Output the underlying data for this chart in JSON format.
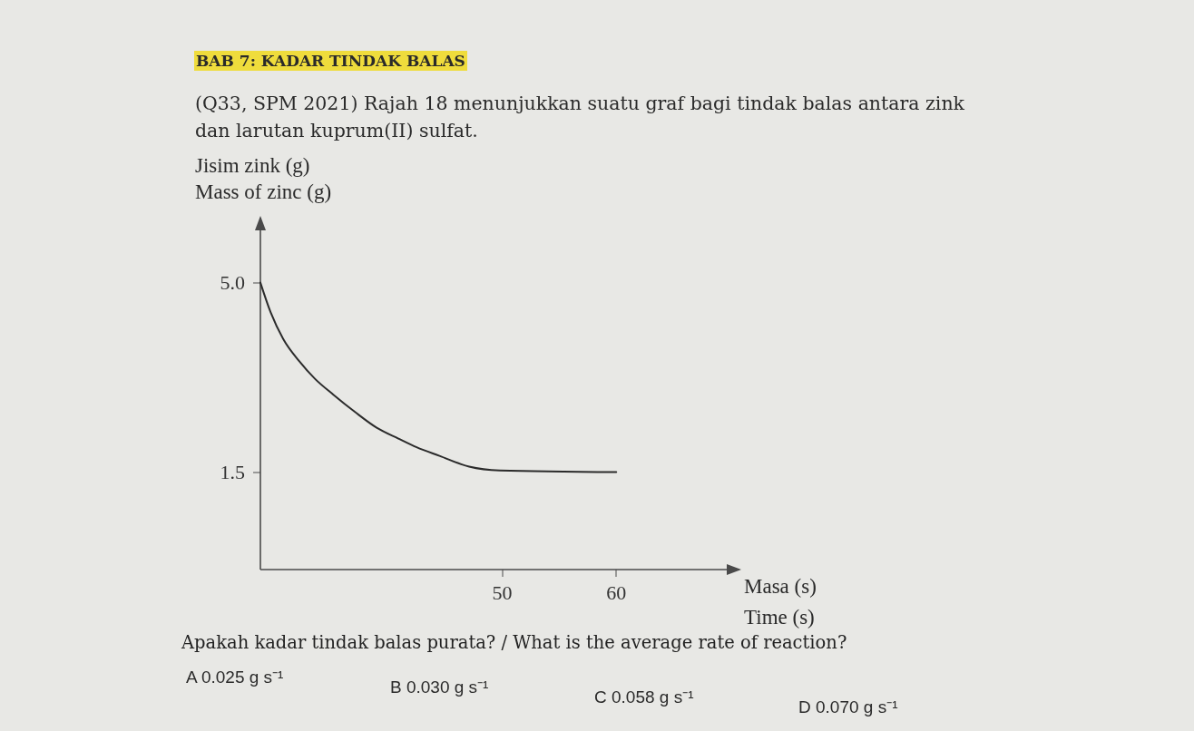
{
  "chart_data": {
    "type": "line",
    "title": "BAB 7: KADAR TINDAK BALAS",
    "subtitle": "(Q33, SPM 2021) Rajah 18 menunjukkan suatu graf bagi tindak balas antara zink dan larutan kuprum(II) sulfat.",
    "xlabel": "Masa (s)\nTime (s)",
    "ylabel": "Jisim zink (g)\nMass of zinc (g)",
    "x": [
      28.8,
      29.7,
      30.8,
      32.2,
      33.6,
      35.2,
      37.1,
      39.0,
      40.9,
      42.5,
      44.5,
      47.1,
      49.8,
      60.0
    ],
    "series": [
      {
        "color": "#2b2b2b",
        "values": [
          5.0,
          4.45,
          3.96,
          3.55,
          3.22,
          2.93,
          2.61,
          2.32,
          2.12,
          1.96,
          1.8,
          1.6,
          1.53,
          1.5
        ]
      }
    ],
    "xlim": [
      28.8,
      70.8
    ],
    "ylim": [
      -0.3,
      6.2
    ],
    "xticks": [
      50,
      60
    ],
    "yticks": [
      {
        "value": 5,
        "label": "5.0"
      },
      1.5
    ],
    "annotations": [
      "Apakah kadar tindak balas purata? / What is the average rate of reaction?",
      "A 0.025 g s⁻¹",
      "B 0.030 g s⁻¹",
      "C 0.058 g s⁻¹",
      "D 0.070 g s⁻¹"
    ]
  }
}
